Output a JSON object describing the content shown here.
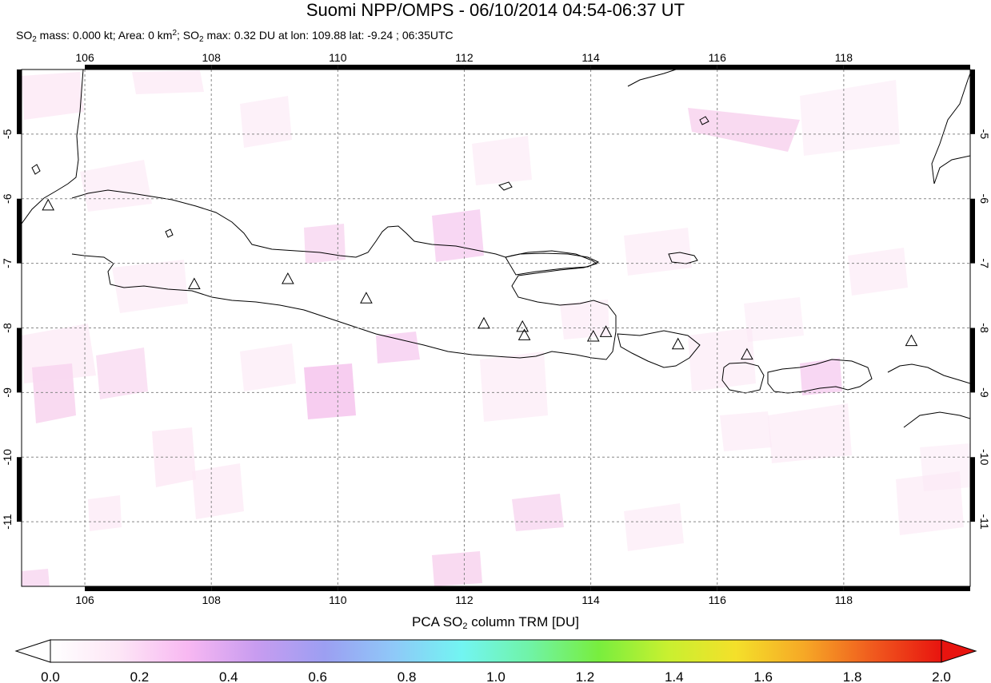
{
  "title": "Suomi NPP/OMPS - 06/10/2014 04:54-06:37 UT",
  "subtitle": {
    "so2_label": "SO",
    "so2_sub": "2",
    "mass_text": " mass: 0.000 kt; Area: 0 km",
    "area_sup": "2",
    "sep": "; SO",
    "so2_sub_2": "2",
    "max_text": " max: 0.32 DU at lon: 109.88 lat: -9.24 ; 06:35UTC"
  },
  "map": {
    "lon_range": [
      105.0,
      120.0
    ],
    "lat_range": [
      -12.0,
      -4.0
    ],
    "lon_ticks": [
      "106",
      "108",
      "110",
      "112",
      "114",
      "116",
      "118"
    ],
    "lon_tick_values": [
      106,
      108,
      110,
      112,
      114,
      116,
      118
    ],
    "lat_ticks": [
      "-5",
      "-6",
      "-7",
      "-8",
      "-9",
      "-10",
      "-11"
    ],
    "lat_tick_values": [
      -5,
      -6,
      -7,
      -8,
      -9,
      -10,
      -11
    ],
    "grid": "dashed",
    "volcanoes": [
      {
        "lon": 105.42,
        "lat": -6.1
      },
      {
        "lon": 107.73,
        "lat": -7.32
      },
      {
        "lon": 109.21,
        "lat": -7.24
      },
      {
        "lon": 110.45,
        "lat": -7.54
      },
      {
        "lon": 112.31,
        "lat": -7.93
      },
      {
        "lon": 112.92,
        "lat": -7.98
      },
      {
        "lon": 112.95,
        "lat": -8.11
      },
      {
        "lon": 114.04,
        "lat": -8.13
      },
      {
        "lon": 114.24,
        "lat": -8.06
      },
      {
        "lon": 115.38,
        "lat": -8.25
      },
      {
        "lon": 116.47,
        "lat": -8.41
      },
      {
        "lon": 119.07,
        "lat": -8.2
      }
    ]
  },
  "colorbar": {
    "title": "PCA SO",
    "title_sub": "2",
    "title_rest": " column TRM [DU]",
    "ticks": [
      "0.0",
      "0.2",
      "0.4",
      "0.6",
      "0.8",
      "1.0",
      "1.2",
      "1.4",
      "1.6",
      "1.8",
      "2.0"
    ],
    "tick_values": [
      0.0,
      0.2,
      0.4,
      0.6,
      0.8,
      1.0,
      1.2,
      1.4,
      1.6,
      1.8,
      2.0
    ],
    "range": [
      0.0,
      2.0
    ],
    "under_color": "#ffffff",
    "over_color": "#e8140f",
    "colors": [
      "#ffffff",
      "#fde6f6",
      "#f8b8f2",
      "#c89cf0",
      "#9c9ff2",
      "#8fc8f8",
      "#72f5f2",
      "#70f3a6",
      "#78ee3e",
      "#c8f030",
      "#f4e02a",
      "#f6a826",
      "#f05a1e",
      "#e8140f"
    ]
  }
}
